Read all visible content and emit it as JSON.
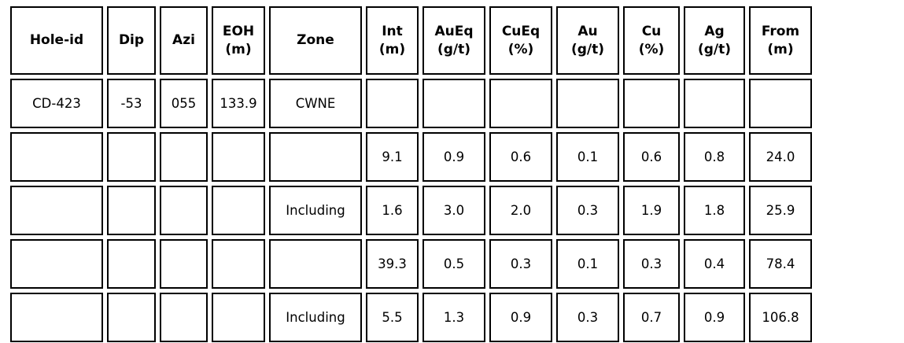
{
  "table": {
    "description": "Drill hole assay results table",
    "colors": {
      "border": "#000000",
      "text": "#000000",
      "background": "#ffffff"
    },
    "columns": [
      "Hole-id",
      "Dip",
      "Azi",
      "EOH\n(m)",
      "Zone",
      "Int\n(m)",
      "AuEq\n(g/t)",
      "CuEq\n(%)",
      "Au\n(g/t)",
      "Cu\n(%)",
      "Ag\n(g/t)",
      "From\n(m)"
    ],
    "rows": [
      {
        "cells": [
          "CD-423",
          "-53",
          "055",
          "133.9",
          "CWNE",
          "",
          "",
          "",
          "",
          "",
          "",
          ""
        ]
      },
      {
        "cells": [
          "",
          "",
          "",
          "",
          "",
          "9.1",
          "0.9",
          "0.6",
          "0.1",
          "0.6",
          "0.8",
          "24.0"
        ]
      },
      {
        "cells": [
          "",
          "",
          "",
          "",
          "Including",
          "1.6",
          "3.0",
          "2.0",
          "0.3",
          "1.9",
          "1.8",
          "25.9"
        ]
      },
      {
        "cells": [
          "",
          "",
          "",
          "",
          "",
          "39.3",
          "0.5",
          "0.3",
          "0.1",
          "0.3",
          "0.4",
          "78.4"
        ]
      },
      {
        "cells": [
          "",
          "",
          "",
          "",
          "Including",
          "5.5",
          "1.3",
          "0.9",
          "0.3",
          "0.7",
          "0.9",
          "106.8"
        ]
      }
    ]
  }
}
